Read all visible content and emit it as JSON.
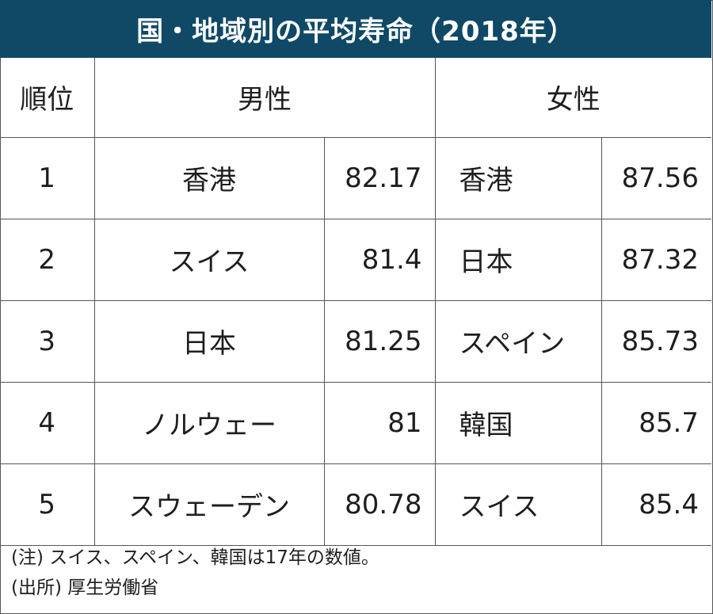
{
  "title": "国・地域別の平均寿命（2018年）",
  "headers": {
    "rank": "順位",
    "male": "男性",
    "female": "女性"
  },
  "rows": [
    {
      "rank": "1",
      "male_country": "香港",
      "male_value": "82.17",
      "female_country": "香港",
      "female_value": "87.56"
    },
    {
      "rank": "2",
      "male_country": "スイス",
      "male_value": "81.4",
      "female_country": "日本",
      "female_value": "87.32"
    },
    {
      "rank": "3",
      "male_country": "日本",
      "male_value": "81.25",
      "female_country": "スペイン",
      "female_value": "85.73"
    },
    {
      "rank": "4",
      "male_country": "ノルウェー",
      "male_value": "81",
      "female_country": "韓国",
      "female_value": "85.7"
    },
    {
      "rank": "5",
      "male_country": "スウェーデン",
      "male_value": "80.78",
      "female_country": "スイス",
      "female_value": "85.4"
    }
  ],
  "notes": {
    "note": "(注) スイス、スペイン、韓国は17年の数値。",
    "source": "(出所) 厚生労働省"
  },
  "colors": {
    "title_bg": "#0f4966",
    "title_text": "#ffffff",
    "border": "#555555"
  }
}
